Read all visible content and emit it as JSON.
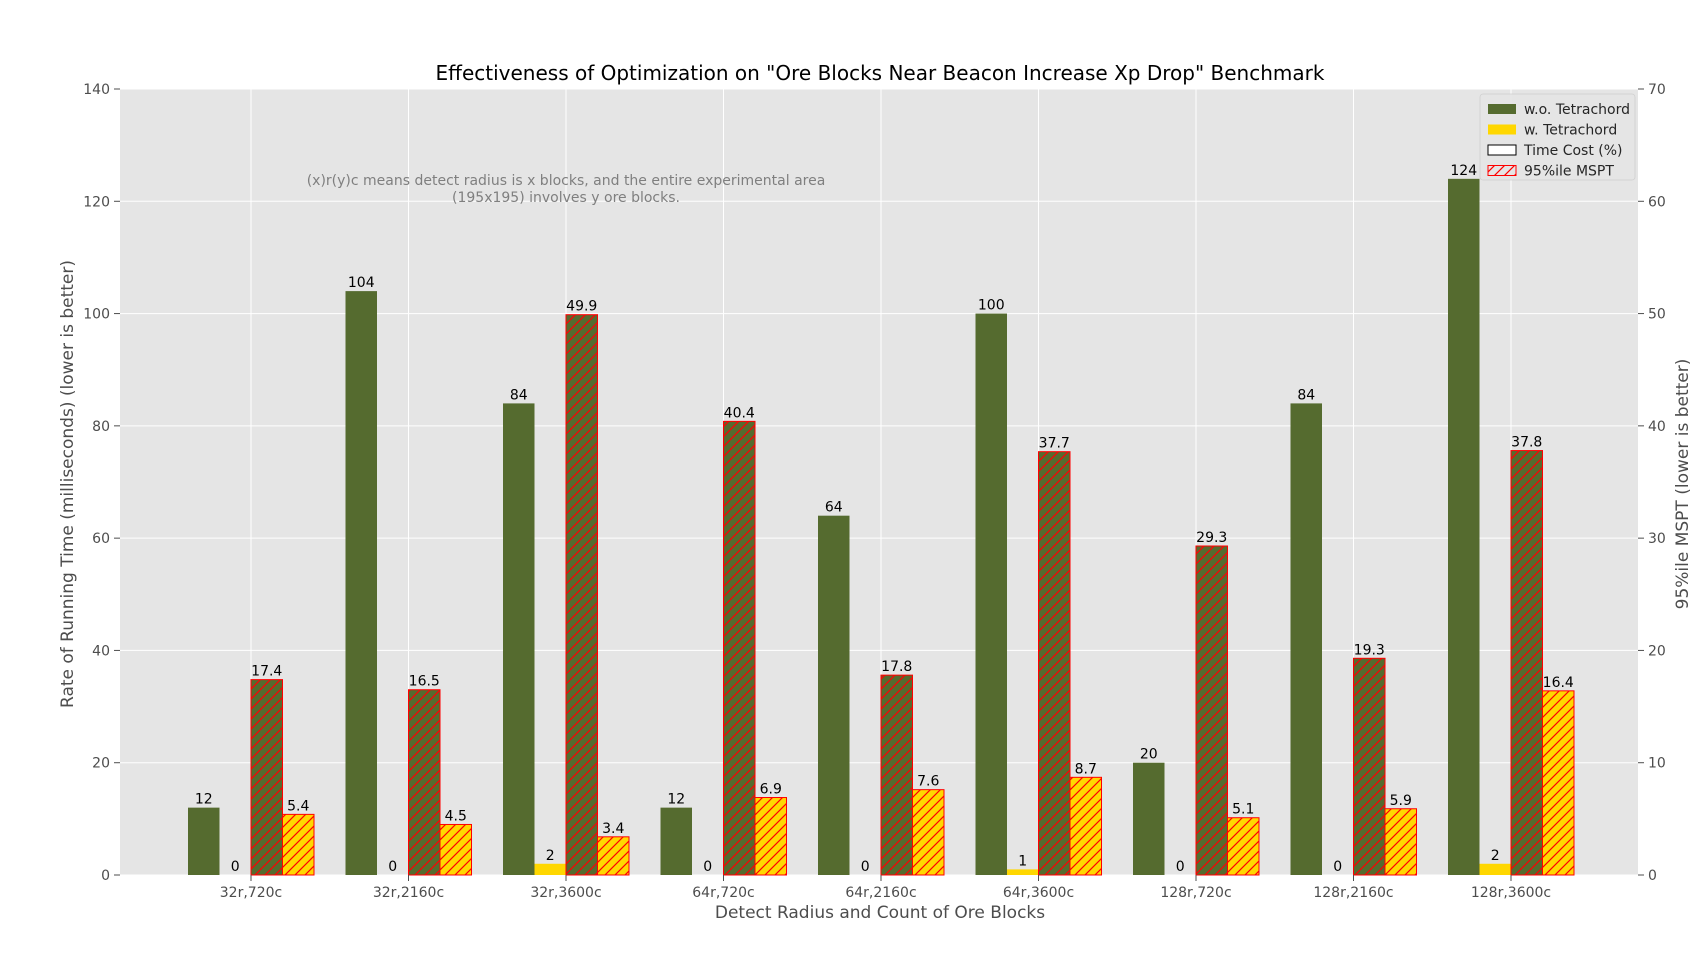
{
  "chart_data": {
    "type": "bar",
    "title": "Effectiveness of Optimization on \"Ore Blocks Near Beacon Increase Xp Drop\" Benchmark",
    "xlabel": "Detect Radius and Count of Ore Blocks",
    "ylabel": "Rate of Running Time (milliseconds) (lower is better)",
    "y2label": "95%ile MSPT (lower is better)",
    "ylim": [
      0,
      140
    ],
    "y2lim": [
      0,
      70
    ],
    "yticks": [
      0,
      20,
      40,
      60,
      80,
      100,
      120,
      140
    ],
    "y2ticks": [
      0,
      10,
      20,
      30,
      40,
      50,
      60,
      70
    ],
    "grid": true,
    "legend_position": "top-right",
    "annotation": [
      "(x)r(y)c means detect radius is x blocks, and the entire experimental area",
      "(195x195) involves y ore blocks."
    ],
    "categories": [
      "32r,720c",
      "32r,2160c",
      "32r,3600c",
      "64r,720c",
      "64r,2160c",
      "64r,3600c",
      "128r,720c",
      "128r,2160c",
      "128r,3600c"
    ],
    "series": [
      {
        "name": "w.o. Tetrachord",
        "axis": "left",
        "kind": "time",
        "color": "#556b2f",
        "values": [
          12,
          104,
          84,
          12,
          64,
          100,
          20,
          84,
          124
        ]
      },
      {
        "name": "w. Tetrachord",
        "axis": "left",
        "kind": "time",
        "color": "#ffd700",
        "values": [
          0,
          0,
          2,
          0,
          0,
          1,
          0,
          0,
          2
        ]
      },
      {
        "name": "95%ile MSPT w.o. Tetrachord",
        "axis": "right",
        "kind": "mspt",
        "color": "#556b2f",
        "values": [
          17.4,
          16.5,
          49.9,
          40.4,
          17.8,
          37.7,
          29.3,
          19.3,
          37.8
        ]
      },
      {
        "name": "95%ile MSPT w. Tetrachord",
        "axis": "right",
        "kind": "mspt",
        "color": "#ffd700",
        "values": [
          5.4,
          4.5,
          3.4,
          6.9,
          7.6,
          8.7,
          5.1,
          5.9,
          16.4
        ]
      }
    ],
    "legend": [
      {
        "label": "w.o. Tetrachord",
        "style": "solid",
        "color": "#556b2f"
      },
      {
        "label": "w. Tetrachord",
        "style": "solid",
        "color": "#ffd700"
      },
      {
        "label": "Time Cost (%)",
        "style": "outline",
        "color": "#000000"
      },
      {
        "label": "95%ile MSPT",
        "style": "hatch",
        "color": "#ff0000"
      }
    ],
    "colors": {
      "background": "#e5e5e5",
      "grid": "#ffffff",
      "hatch": "#ff0000"
    }
  }
}
